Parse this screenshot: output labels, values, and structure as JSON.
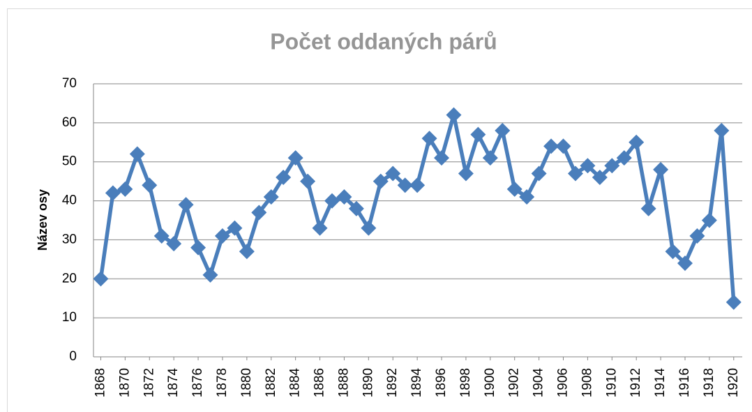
{
  "chart_data": {
    "type": "line",
    "title": "Počet oddaných párů",
    "y_label": "Název osy",
    "x": [
      1868,
      1869,
      1870,
      1871,
      1872,
      1873,
      1874,
      1875,
      1876,
      1877,
      1878,
      1879,
      1880,
      1881,
      1882,
      1883,
      1884,
      1885,
      1886,
      1887,
      1888,
      1889,
      1890,
      1891,
      1892,
      1893,
      1894,
      1895,
      1896,
      1897,
      1898,
      1899,
      1900,
      1901,
      1902,
      1903,
      1904,
      1905,
      1906,
      1907,
      1908,
      1909,
      1910,
      1911,
      1912,
      1913,
      1914,
      1915,
      1916,
      1917,
      1918,
      1919,
      1920
    ],
    "series": [
      {
        "color": "#4a7ebb",
        "values": [
          20,
          42,
          43,
          52,
          44,
          31,
          29,
          39,
          28,
          21,
          31,
          33,
          27,
          37,
          41,
          46,
          51,
          45,
          33,
          40,
          41,
          38,
          33,
          45,
          47,
          44,
          44,
          56,
          51,
          62,
          47,
          57,
          51,
          58,
          43,
          41,
          47,
          54,
          54,
          47,
          49,
          46,
          49,
          51,
          55,
          38,
          48,
          27,
          24,
          31,
          35,
          58,
          14
        ]
      }
    ],
    "xlim": [
      1867.4,
      1920.7
    ],
    "xticks": [
      1868,
      1870,
      1872,
      1874,
      1876,
      1878,
      1880,
      1882,
      1884,
      1886,
      1888,
      1890,
      1892,
      1894,
      1896,
      1898,
      1900,
      1902,
      1904,
      1906,
      1908,
      1910,
      1912,
      1914,
      1916,
      1918,
      1920
    ],
    "ylim": [
      0,
      70
    ],
    "yticks": [
      0,
      10,
      20,
      30,
      40,
      50,
      60,
      70
    ],
    "grid": true
  }
}
